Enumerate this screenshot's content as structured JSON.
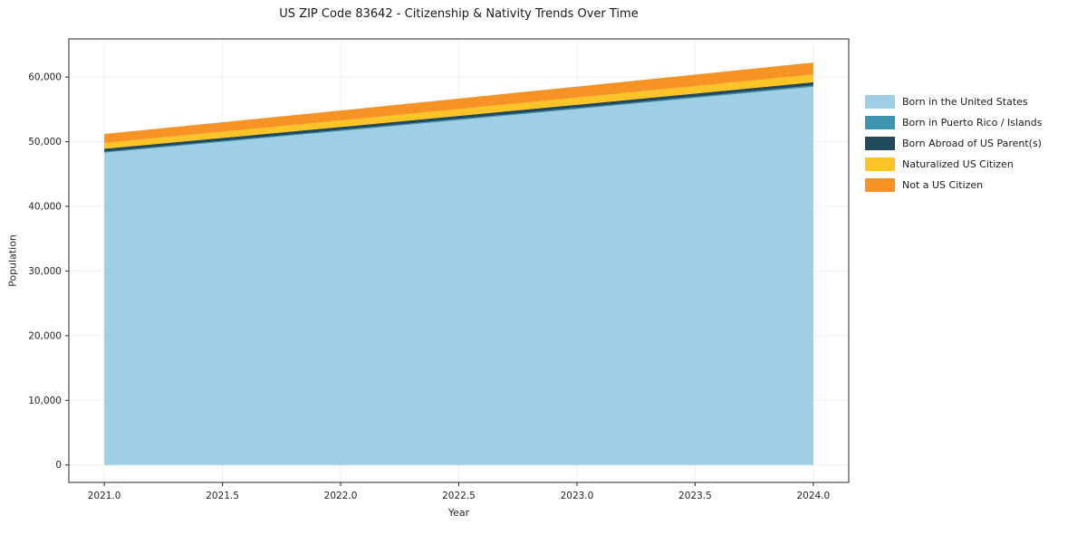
{
  "chart_data": {
    "type": "area",
    "stacked": true,
    "title": "US ZIP Code 83642 - Citizenship & Nativity Trends Over Time",
    "xlabel": "Year",
    "ylabel": "Population",
    "x": [
      2021,
      2022,
      2023,
      2024
    ],
    "series": [
      {
        "name": "Born in the United States",
        "color": "#9ecfe4",
        "values": [
          48300,
          51650,
          55050,
          58500
        ]
      },
      {
        "name": "Born in Puerto Rico / Islands",
        "color": "#3e93ae",
        "values": [
          150,
          160,
          180,
          200
        ]
      },
      {
        "name": "Born Abroad of US Parent(s)",
        "color": "#204a5c",
        "values": [
          450,
          470,
          490,
          500
        ]
      },
      {
        "name": "Naturalized US Citizen",
        "color": "#fdc428",
        "values": [
          900,
          1000,
          1100,
          1200
        ]
      },
      {
        "name": "Not a US Citizen",
        "color": "#f79324",
        "values": [
          1400,
          1550,
          1700,
          1850
        ]
      }
    ],
    "xlim": [
      2020.85,
      2024.15
    ],
    "ylim": [
      -2700,
      65900
    ],
    "xticks": [
      2021.0,
      2021.5,
      2022.0,
      2022.5,
      2023.0,
      2023.5,
      2024.0
    ],
    "xtick_labels": [
      "2021.0",
      "2021.5",
      "2022.0",
      "2022.5",
      "2023.0",
      "2023.5",
      "2024.0"
    ],
    "yticks": [
      0,
      10000,
      20000,
      30000,
      40000,
      50000,
      60000
    ],
    "ytick_labels": [
      "0",
      "10,000",
      "20,000",
      "30,000",
      "40,000",
      "50,000",
      "60,000"
    ],
    "legend_position": "right",
    "grid": true,
    "grid_color": "#f0f0f0",
    "axis_color": "#262626"
  }
}
